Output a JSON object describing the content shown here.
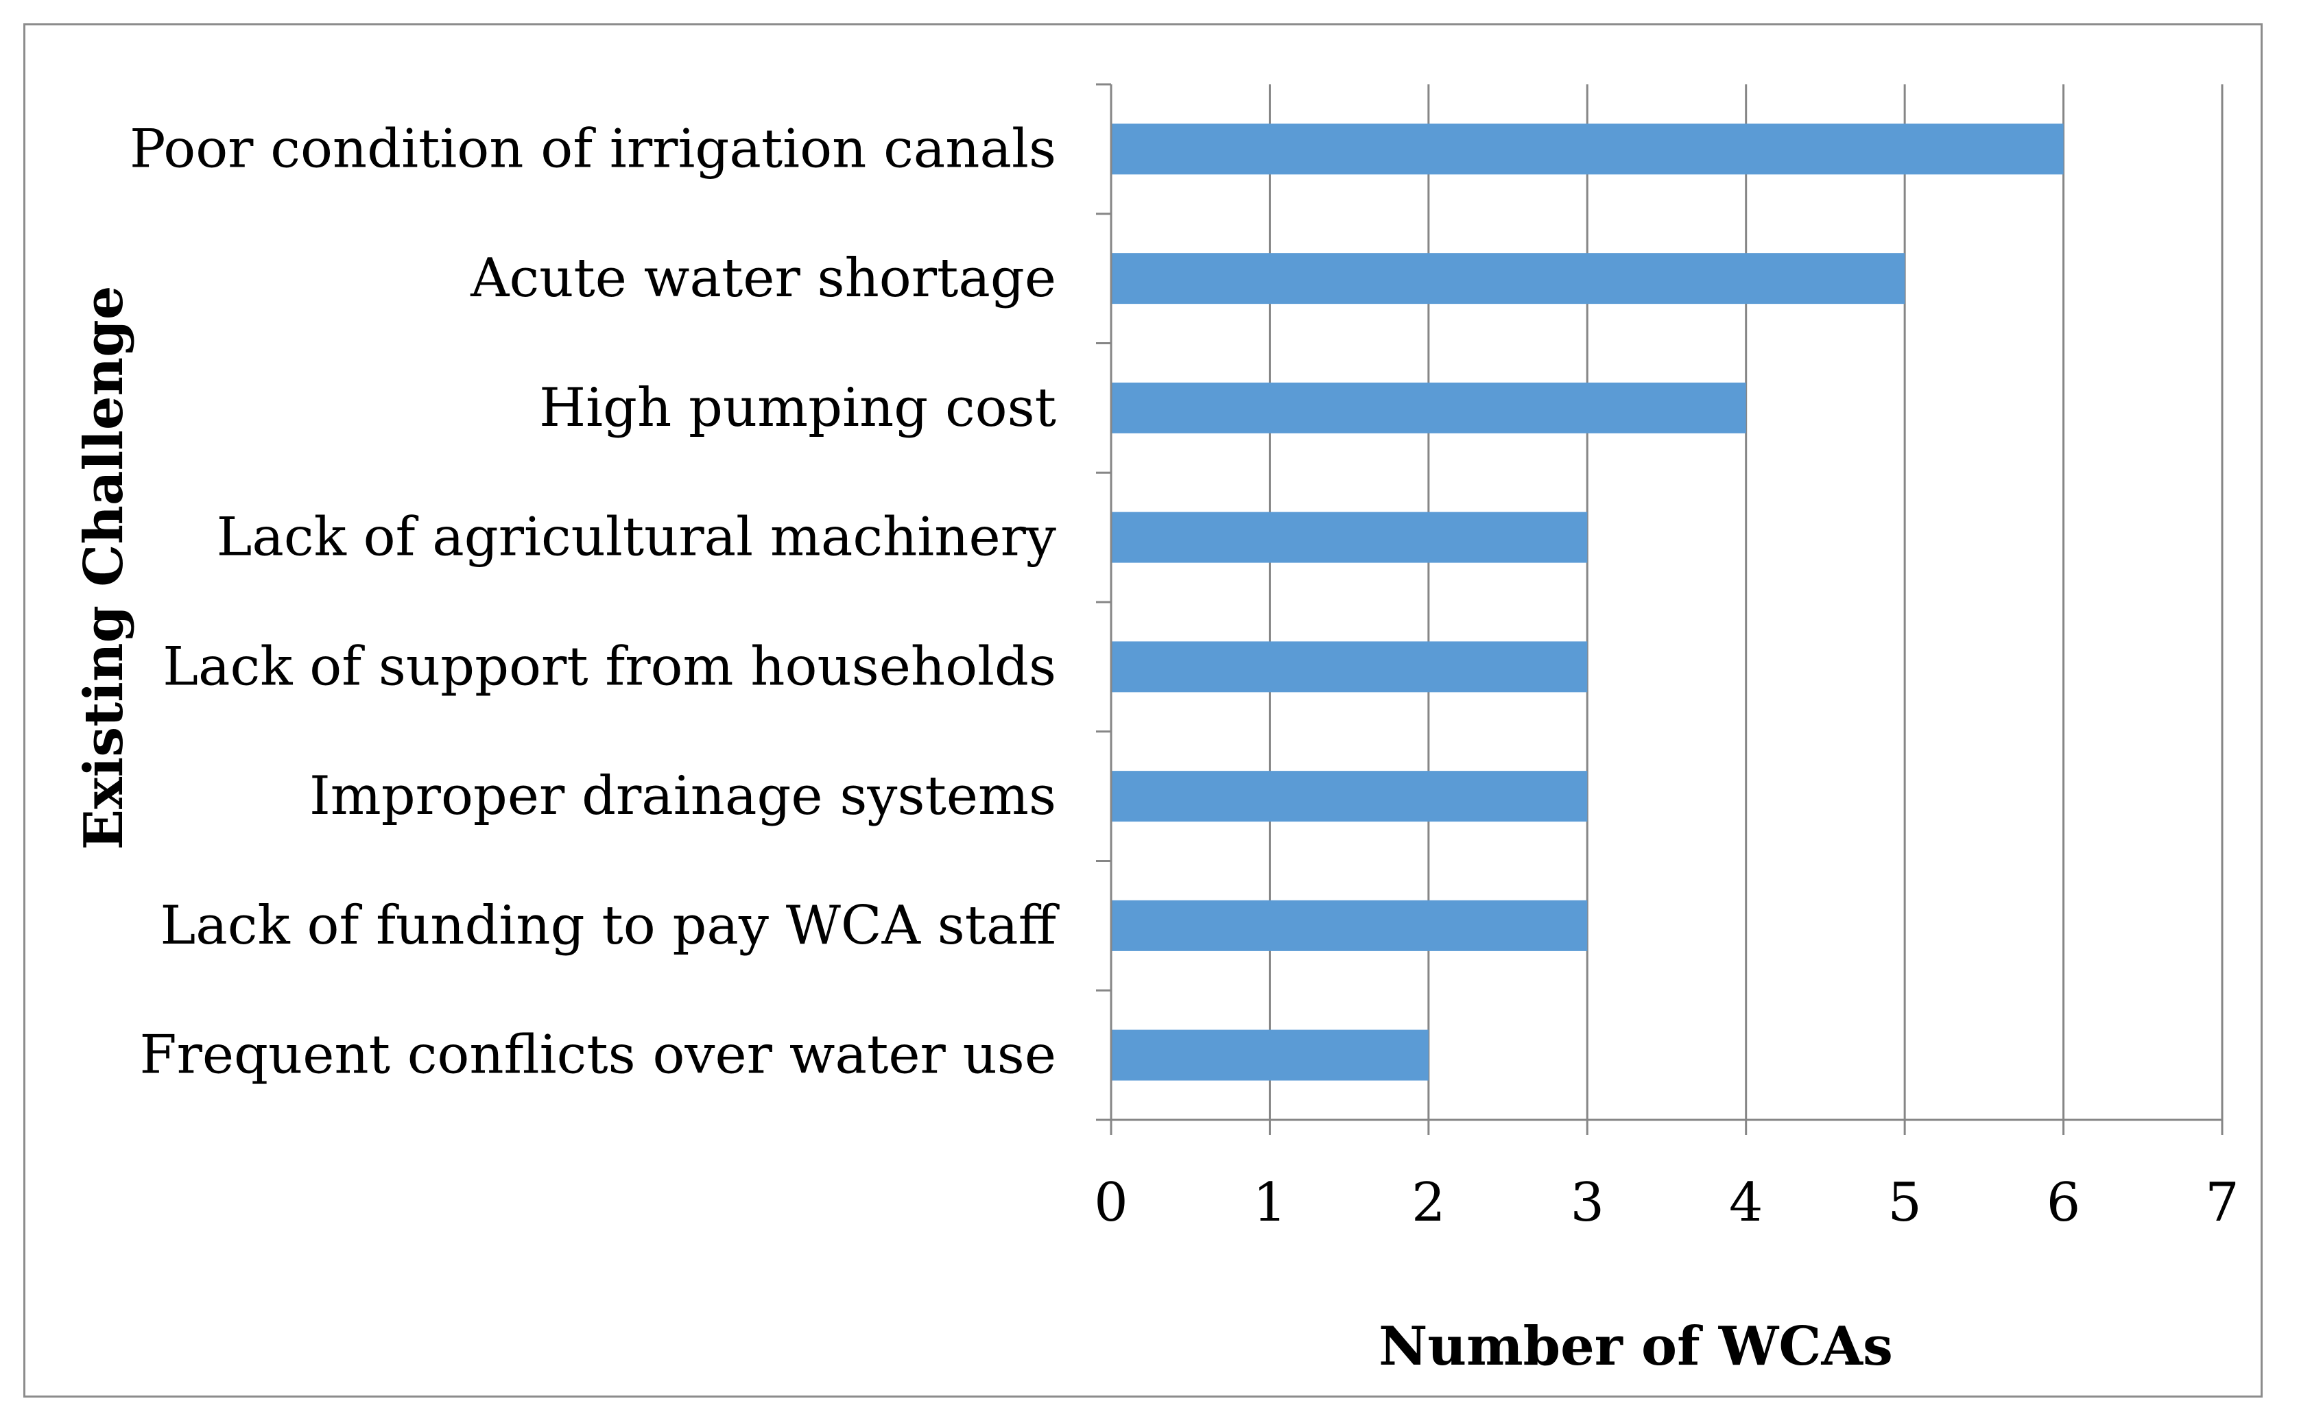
{
  "chart_data": {
    "type": "bar",
    "orientation": "horizontal",
    "categories": [
      "Poor condition of irrigation canals",
      "Acute water shortage",
      "High pumping cost",
      "Lack of agricultural machinery",
      "Lack of support from households",
      "Improper drainage systems",
      "Lack of funding to pay WCA staff",
      "Frequent conflicts over water use"
    ],
    "values": [
      6,
      5,
      4,
      3,
      3,
      3,
      3,
      2
    ],
    "xlabel": "Number of WCAs",
    "ylabel": "Existing Challenge",
    "xlim": [
      0,
      7
    ],
    "xticks": [
      "0",
      "1",
      "2",
      "3",
      "4",
      "5",
      "6",
      "7"
    ],
    "grid": "vertical",
    "legend": "none",
    "colors": {
      "bar": "#5b9bd5",
      "grid": "#868686",
      "axis": "#868686",
      "frame": "#8c8c8c"
    }
  }
}
